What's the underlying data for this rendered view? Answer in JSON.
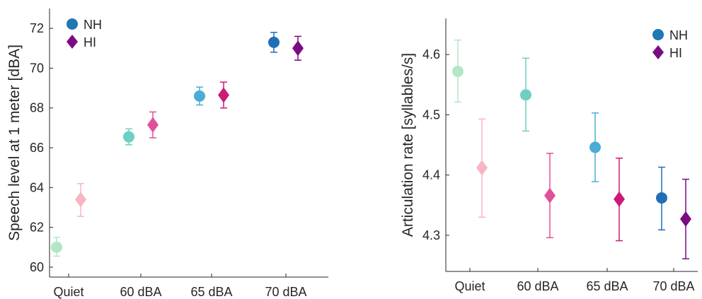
{
  "chart_data": [
    {
      "type": "scatter",
      "variant": "errorbar",
      "ylabel": "Speech level at 1 meter [dBA]",
      "xlabel": "",
      "categories": [
        "Quiet",
        "60 dBA",
        "65 dBA",
        "70 dBA"
      ],
      "ylim": [
        59.5,
        73
      ],
      "yticks": [
        60,
        62,
        64,
        66,
        68,
        70,
        72
      ],
      "legend_position": "top-left",
      "series": [
        {
          "name": "NH",
          "marker": "circle",
          "legend_color": "#1f77b4",
          "colors": [
            "#b3e6c4",
            "#6fcfc3",
            "#4bacd6",
            "#1f6fb4"
          ],
          "values": [
            61.0,
            66.55,
            68.6,
            71.3
          ],
          "err_low": [
            60.55,
            66.15,
            68.15,
            70.8
          ],
          "err_high": [
            61.5,
            66.95,
            69.05,
            71.8
          ]
        },
        {
          "name": "HI",
          "marker": "diamond",
          "legend_color": "#7b0b83",
          "colors": [
            "#f7b6c2",
            "#e0509a",
            "#cc1a78",
            "#7b0b83"
          ],
          "values": [
            63.4,
            67.15,
            68.65,
            71.0
          ],
          "err_low": [
            62.55,
            66.5,
            68.0,
            70.4
          ],
          "err_high": [
            64.2,
            67.8,
            69.3,
            71.6
          ]
        }
      ]
    },
    {
      "type": "scatter",
      "variant": "errorbar",
      "ylabel": "Articulation rate [syllables/s]",
      "xlabel": "",
      "categories": [
        "Quiet",
        "60 dBA",
        "65 dBA",
        "70 dBA"
      ],
      "ylim": [
        4.24,
        4.66
      ],
      "yticks": [
        4.3,
        4.4,
        4.5,
        4.6
      ],
      "legend_position": "top-right",
      "series": [
        {
          "name": "NH",
          "marker": "circle",
          "legend_color": "#1f77b4",
          "colors": [
            "#b3e6c4",
            "#6fcfc3",
            "#4bacd6",
            "#1f6fb4"
          ],
          "values": [
            4.572,
            4.533,
            4.446,
            4.362
          ],
          "err_low": [
            4.521,
            4.473,
            4.389,
            4.309
          ],
          "err_high": [
            4.624,
            4.594,
            4.503,
            4.413
          ]
        },
        {
          "name": "HI",
          "marker": "diamond",
          "legend_color": "#7b0b83",
          "colors": [
            "#f7b6c2",
            "#e0509a",
            "#cc1a78",
            "#7b0b83"
          ],
          "values": [
            4.412,
            4.366,
            4.36,
            4.327
          ],
          "err_low": [
            4.33,
            4.296,
            4.291,
            4.261
          ],
          "err_high": [
            4.493,
            4.436,
            4.428,
            4.393
          ]
        }
      ]
    }
  ]
}
